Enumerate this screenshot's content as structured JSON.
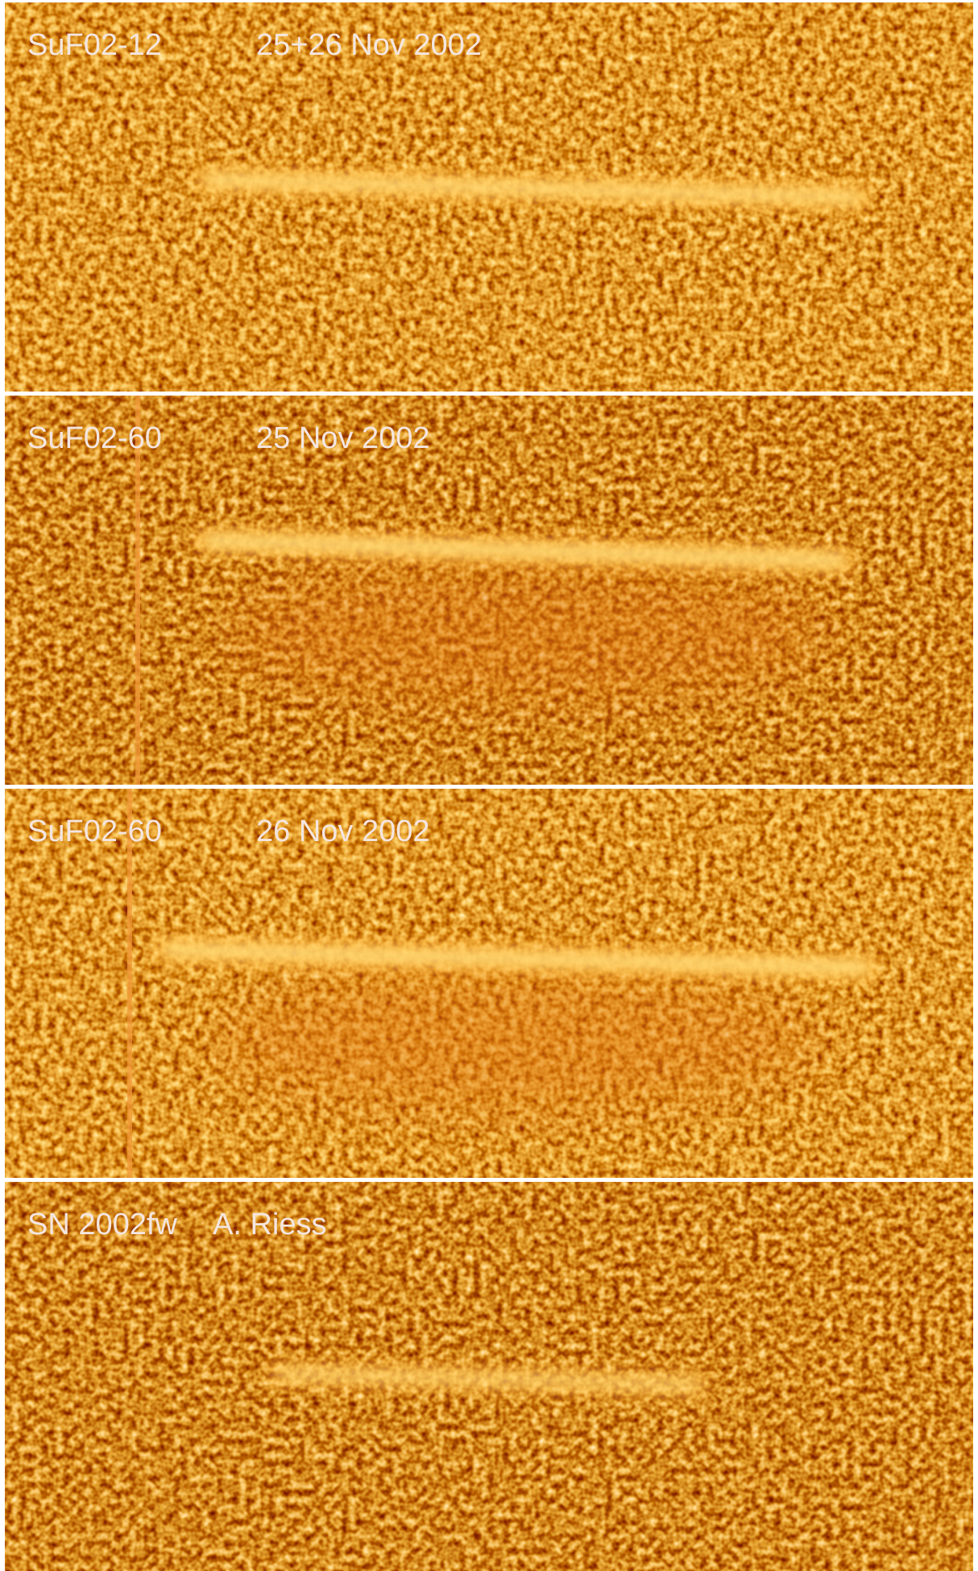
{
  "panels": [
    {
      "name": "SuF02-12",
      "date": "25+26 Nov 2002"
    },
    {
      "name": "SuF02-60",
      "date": "25 Nov 2002"
    },
    {
      "name": "SuF02-60",
      "date": "26 Nov 2002"
    },
    {
      "name": "SN 2002fw",
      "date": "A. Riess"
    }
  ]
}
